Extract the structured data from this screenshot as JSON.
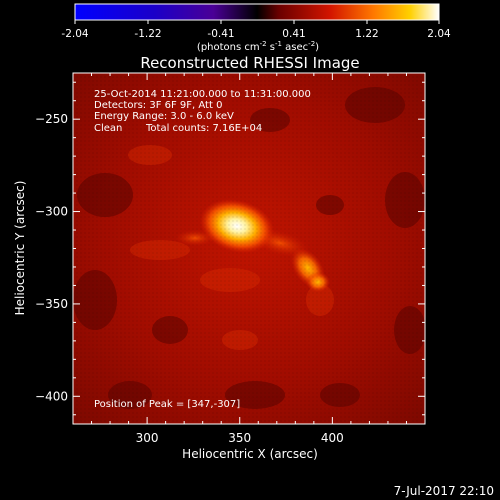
{
  "colorbar": {
    "ticks": [
      "-2.04",
      "-1.22",
      "-0.41",
      "0.41",
      "1.22",
      "2.04"
    ],
    "units_prefix": "(photons cm",
    "units_exp1": "-2",
    "units_mid": " s",
    "units_exp2": "-1",
    "units_mid2": " asec",
    "units_exp3": "-2",
    "units_suffix": ")"
  },
  "title": "Reconstructed RHESSI Image",
  "info": {
    "time_range": "25-Oct-2014 11:21:00.000 to 11:31:00.000",
    "detectors": "Detectors: 3F 6F 9F, Att 0",
    "energy": "Energy Range: 3.0 - 6.0 keV",
    "clean": "Clean",
    "counts": "Total counts: 7.16E+04",
    "peak": "Position of Peak = [347,-307]"
  },
  "axes": {
    "xlabel": "Heliocentric X (arcsec)",
    "ylabel": "Heliocentric Y (arcsec)",
    "xticks": [
      {
        "value": 300,
        "label": "300"
      },
      {
        "value": 350,
        "label": "350"
      },
      {
        "value": 400,
        "label": "400"
      }
    ],
    "yticks": [
      {
        "value": -250,
        "label": "−250"
      },
      {
        "value": -300,
        "label": "−300"
      },
      {
        "value": -350,
        "label": "−350"
      },
      {
        "value": -400,
        "label": "−400"
      }
    ],
    "xlim": [
      260,
      450
    ],
    "ylim": [
      -415,
      -225
    ]
  },
  "footer_date": "7-Jul-2017 22:10",
  "colors": {
    "background": "#000000",
    "text": "#ffffff"
  }
}
